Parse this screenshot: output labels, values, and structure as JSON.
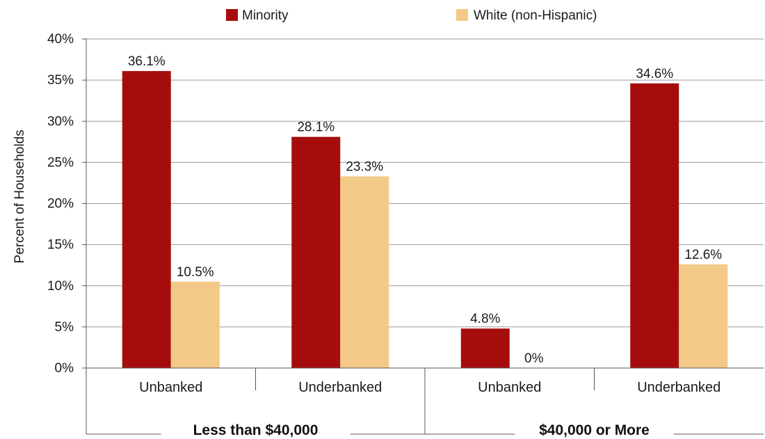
{
  "chart_data": {
    "type": "bar",
    "title": "",
    "ylabel": "Percent of Households",
    "xlabel": "",
    "ylim": [
      0,
      40
    ],
    "yticks": [
      0,
      5,
      10,
      15,
      20,
      25,
      30,
      35,
      40
    ],
    "ytick_suffix": "%",
    "grid": true,
    "legend_position": "top-center",
    "categories": [
      "Unbanked",
      "Underbanked",
      "Unbanked",
      "Underbanked"
    ],
    "groups": [
      {
        "label": "Less than $40,000",
        "categories": [
          0,
          1
        ]
      },
      {
        "label": "$40,000 or More",
        "categories": [
          2,
          3
        ]
      }
    ],
    "series": [
      {
        "name": "Minority",
        "color": "#a50d0d",
        "values": [
          36.1,
          28.1,
          4.8,
          34.6
        ],
        "labels": [
          "36.1%",
          "28.1%",
          "4.8%",
          "34.6%"
        ]
      },
      {
        "name": "White (non-Hispanic)",
        "color": "#f2c987",
        "values": [
          10.5,
          23.3,
          0,
          12.6
        ],
        "labels": [
          "10.5%",
          "23.3%",
          "0%",
          "12.6%"
        ]
      }
    ]
  }
}
